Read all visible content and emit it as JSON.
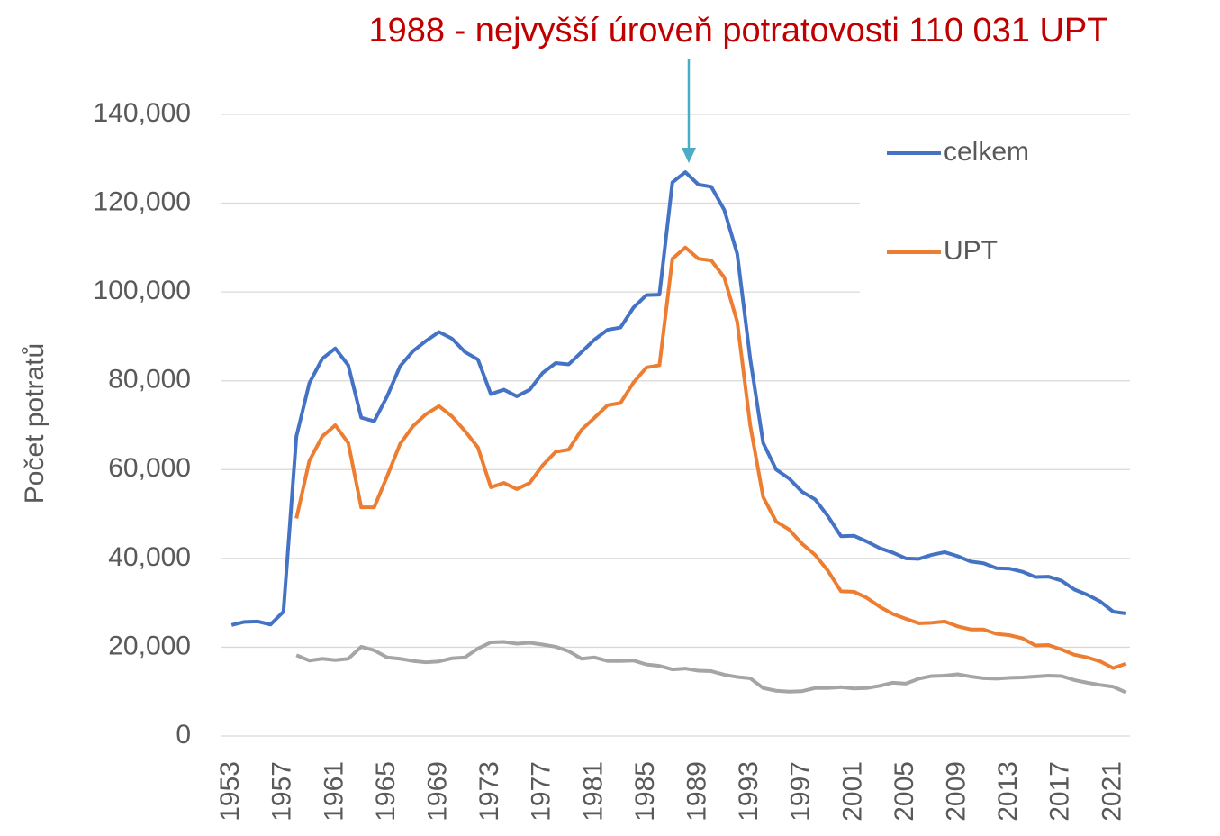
{
  "chart_data": {
    "type": "line",
    "title": "1988 - nejvyšší úroveň potratovosti 110 031 UPT",
    "y_label": "Počet potratů",
    "categories": [
      "1953",
      null,
      null,
      null,
      "1957",
      null,
      null,
      null,
      "1961",
      null,
      null,
      null,
      "1965",
      null,
      null,
      null,
      "1969",
      null,
      null,
      null,
      "1973",
      null,
      null,
      null,
      "1977",
      null,
      null,
      null,
      "1981",
      null,
      null,
      null,
      "1985",
      null,
      null,
      null,
      "1989",
      null,
      null,
      null,
      "1993",
      null,
      null,
      null,
      "1997",
      null,
      null,
      null,
      "2001",
      null,
      null,
      null,
      "2005",
      null,
      null,
      null,
      "2009",
      null,
      null,
      null,
      "2013",
      null,
      null,
      null,
      "2017",
      null,
      null,
      null,
      "2021",
      null
    ],
    "series": [
      {
        "name": "celkem",
        "color": "#4472c4",
        "values": [
          25000,
          25700,
          25800,
          25100,
          28000,
          67500,
          79500,
          85000,
          87300,
          83500,
          71700,
          70900,
          76500,
          83300,
          86700,
          89000,
          91000,
          89500,
          86500,
          84800,
          77000,
          78000,
          76500,
          78000,
          81800,
          84000,
          83700,
          86500,
          89300,
          91500,
          92000,
          96500,
          99300,
          99400,
          124700,
          127000,
          124200,
          123700,
          118500,
          108600,
          85000,
          66000,
          60000,
          58000,
          55000,
          53300,
          49500,
          45000,
          45100,
          43800,
          42300,
          41300,
          40000,
          39900,
          40800,
          41400,
          40500,
          39300,
          38900,
          37800,
          37700,
          37000,
          35800,
          35900,
          35000,
          33000,
          31800,
          30300,
          28000,
          27600
        ]
      },
      {
        "name": "UPT",
        "color": "#ed7d31",
        "values": [
          null,
          null,
          null,
          null,
          null,
          49000,
          62000,
          67500,
          70000,
          66000,
          51500,
          51500,
          58500,
          65800,
          69800,
          72500,
          74300,
          72000,
          68700,
          65000,
          56000,
          57000,
          55600,
          57000,
          61000,
          64000,
          64500,
          69000,
          71700,
          74500,
          75000,
          79600,
          83000,
          83500,
          107500,
          110031,
          107500,
          107100,
          103300,
          93300,
          70000,
          53800,
          48300,
          46500,
          43300,
          40800,
          37200,
          32600,
          32500,
          31100,
          29100,
          27500,
          26400,
          25400,
          25500,
          25800,
          24700,
          24000,
          24000,
          23000,
          22700,
          22000,
          20400,
          20500,
          19500,
          18300,
          17700,
          16800,
          15300,
          16300
        ]
      },
      {
        "color": "#a5a5a5",
        "values": [
          null,
          null,
          null,
          null,
          null,
          18200,
          17000,
          17400,
          17100,
          17400,
          20100,
          19300,
          17700,
          17400,
          16900,
          16600,
          16800,
          17500,
          17700,
          19700,
          21100,
          21200,
          20800,
          21000,
          20600,
          20100,
          19100,
          17400,
          17700,
          16900,
          16900,
          17000,
          16100,
          15800,
          15000,
          15200,
          14700,
          14600,
          13800,
          13300,
          13000,
          10800,
          10200,
          10000,
          10100,
          10800,
          10800,
          11000,
          10700,
          10800,
          11300,
          12000,
          11800,
          12900,
          13500,
          13600,
          13900,
          13400,
          13000,
          12900,
          13100,
          13200,
          13400,
          13600,
          13500,
          12600,
          12000,
          11500,
          11100,
          9800
        ]
      }
    ],
    "ylim": [
      0,
      140000
    ],
    "yticks": [
      0,
      {
        "value": 20000,
        "label": "20,000"
      },
      {
        "value": 40000,
        "label": "40,000"
      },
      {
        "value": 60000,
        "label": "60,000"
      },
      {
        "value": 80000,
        "label": "80,000"
      },
      {
        "value": 100000,
        "label": "100,000"
      },
      {
        "value": 120000,
        "label": "120,000"
      },
      {
        "value": 140000,
        "label": "140,000"
      }
    ],
    "grid": true,
    "legend": "upper right"
  }
}
